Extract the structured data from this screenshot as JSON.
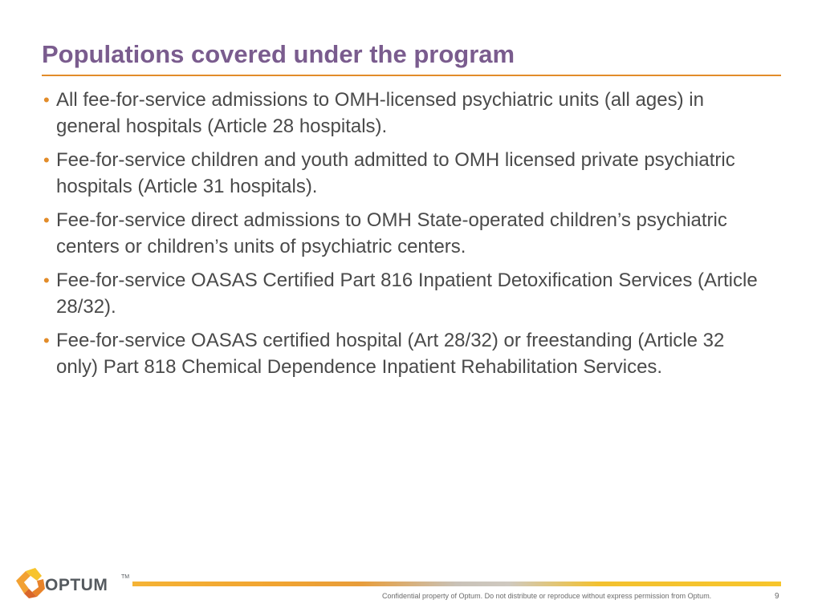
{
  "slide": {
    "title": "Populations covered under the program",
    "bullets": [
      "All fee-for-service admissions to OMH-licensed psychiatric units (all ages) in general hospitals (Article 28 hospitals).",
      "Fee-for-service children and youth admitted to OMH licensed private psychiatric hospitals (Article 31 hospitals).",
      "Fee-for-service direct admissions to OMH State-operated children’s psychiatric centers or children’s units of psychiatric centers.",
      "Fee-for-service OASAS Certified Part 816 Inpatient Detoxification Services (Article 28/32).",
      "Fee-for-service OASAS certified hospital (Art 28/32) or freestanding (Article 32 only) Part 818 Chemical Dependence Inpatient Rehabilitation Services."
    ],
    "bullet_glyph": "•"
  },
  "footer": {
    "logo_text": "OPTUM",
    "logo_tm": "TM",
    "confidential_text": "Confidential property of Optum. Do not distribute or reproduce without express permission from Optum.",
    "page_number": "9"
  },
  "colors": {
    "title": "#7a5c8e",
    "accent_orange": "#e28c2a",
    "body_text": "#4a4a4a",
    "logo_gray": "#555a5f"
  },
  "icons": {
    "logo_mark": "optum-logo-icon"
  }
}
